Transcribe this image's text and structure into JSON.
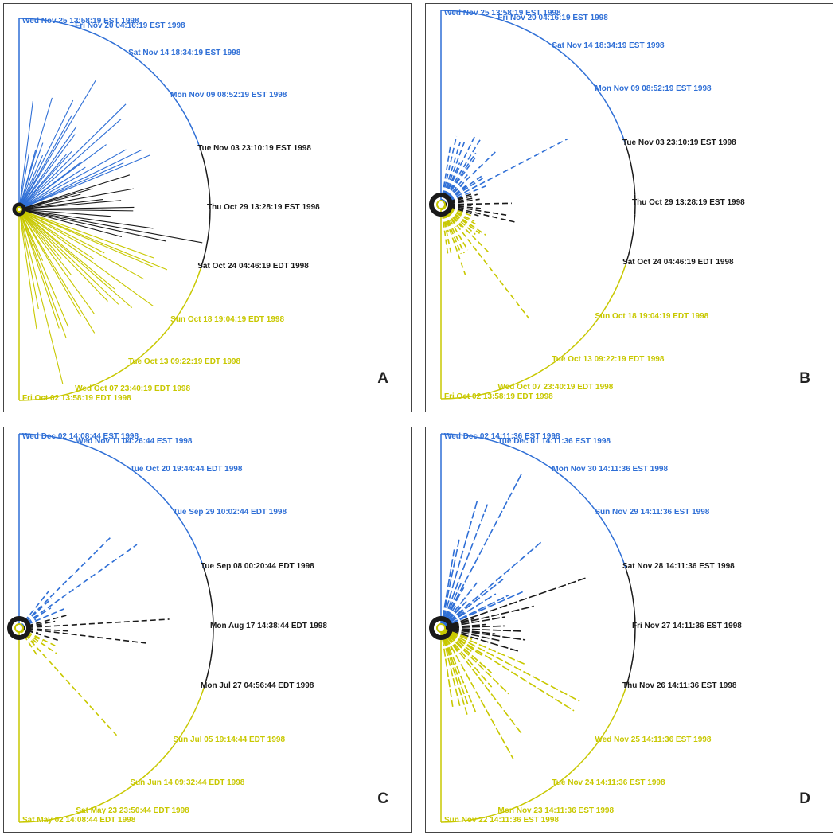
{
  "colors": {
    "recent": "#2f6fd6",
    "middle": "#1a1a1a",
    "old": "#c8c800",
    "frame": "#444444"
  },
  "panels": [
    {
      "letter": "A",
      "ticks": [
        "Wed Nov 25 13:58:19 EST 1998",
        "Fri Nov 20 04:16:19 EST 1998",
        "Sat Nov 14 18:34:19 EST 1998",
        "Mon Nov 09 08:52:19 EST 1998",
        "Tue Nov 03 23:10:19 EST 1998",
        "Thu Oct 29 13:28:19 EST 1998",
        "Sat Oct 24 04:46:19 EDT 1998",
        "Sun Oct 18 19:04:19 EDT 1998",
        "Tue Oct 13 09:22:19 EDT 1998",
        "Wed Oct 07 23:40:19 EDT 1998",
        "Fri Oct 02 13:58:19 EDT 1998"
      ]
    },
    {
      "letter": "B",
      "ticks": [
        "Wed Nov 25 13:58:19 EST 1998",
        "Fri Nov 20 04:16:19 EST 1998",
        "Sat Nov 14 18:34:19 EST 1998",
        "Mon Nov 09 08:52:19 EST 1998",
        "Tue Nov 03 23:10:19 EST 1998",
        "Thu Oct 29 13:28:19 EST 1998",
        "Sat Oct 24 04:46:19 EDT 1998",
        "Sun Oct 18 19:04:19 EDT 1998",
        "Tue Oct 13 09:22:19 EDT 1998",
        "Wed Oct 07 23:40:19 EDT 1998",
        "Fri Oct 02 13:58:19 EDT 1998"
      ]
    },
    {
      "letter": "C",
      "ticks": [
        "Wed Dec 02 14:08:44 EST 1998",
        "Wed Nov 11 04:26:44 EST 1998",
        "Tue Oct 20 19:44:44 EDT 1998",
        "Tue Sep 29 10:02:44 EDT 1998",
        "Tue Sep 08 00:20:44 EDT 1998",
        "Mon Aug 17 14:38:44 EDT 1998",
        "Mon Jul 27 04:56:44 EDT 1998",
        "Sun Jul 05 19:14:44 EDT 1998",
        "Sun Jun 14 09:32:44 EDT 1998",
        "Sat May 23 23:50:44 EDT 1998",
        "Sat May 02 14:08:44 EDT 1998"
      ]
    },
    {
      "letter": "D",
      "ticks": [
        "Wed Dec 02 14:11:36 EST 1998",
        "Tue Dec 01 14:11:36 EST 1998",
        "Mon Nov 30 14:11:36 EST 1998",
        "Sun Nov 29 14:11:36 EST 1998",
        "Sat Nov 28 14:11:36 EST 1998",
        "Fri Nov 27 14:11:36 EST 1998",
        "Thu Nov 26 14:11:36 EST 1998",
        "Wed Nov 25 14:11:36 EST 1998",
        "Tue Nov 24 14:11:36 EST 1998",
        "Mon Nov 23 14:11:36 EST 1998",
        "Sun Nov 22 14:11:36 EST 1998"
      ]
    }
  ]
}
